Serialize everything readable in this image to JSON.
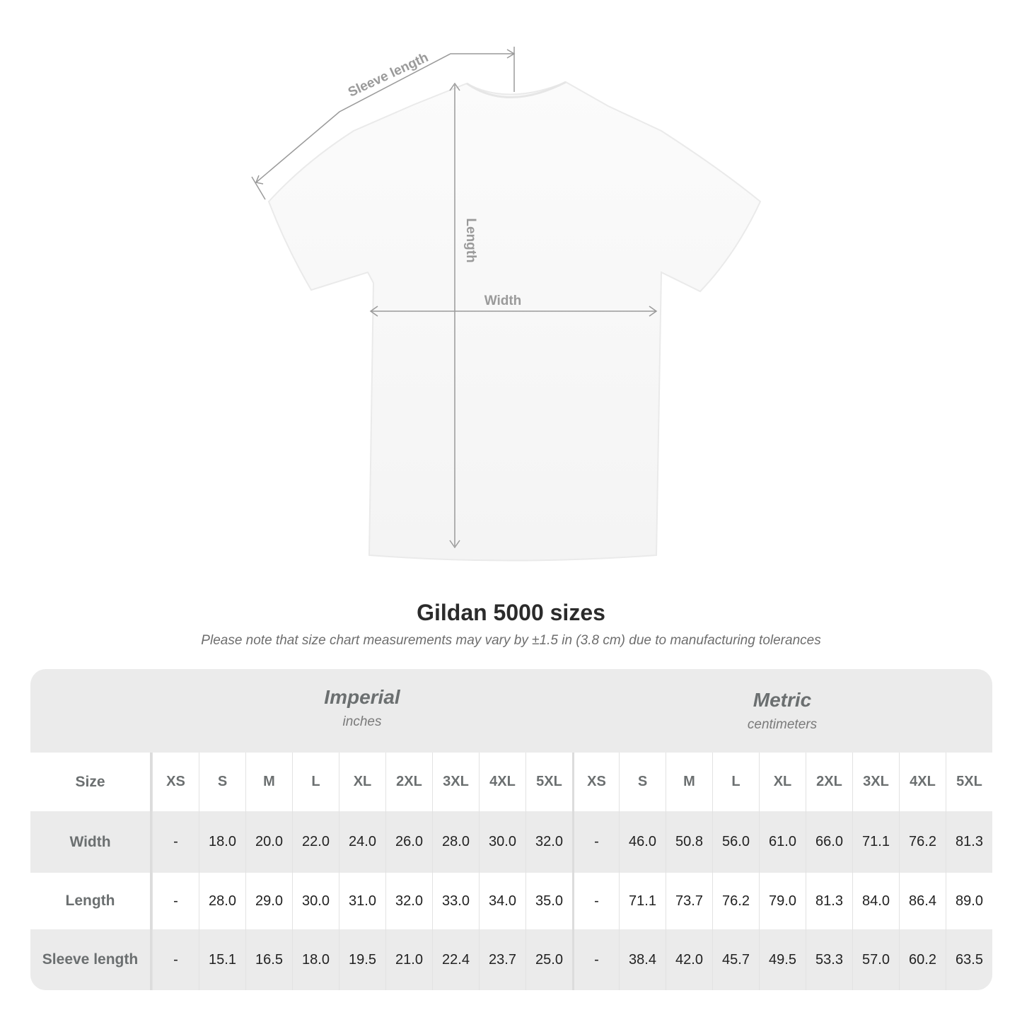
{
  "diagram": {
    "sleeve_label": "Sleeve length",
    "length_label": "Length",
    "width_label": "Width"
  },
  "title": "Gildan 5000 sizes",
  "subtitle": "Please note that size chart measurements may vary by ±1.5 in (3.8 cm) due to manufacturing tolerances",
  "imperial": {
    "name": "Imperial",
    "unit": "inches"
  },
  "metric": {
    "name": "Metric",
    "unit": "centimeters"
  },
  "table": {
    "size_label": "Size",
    "sizes": [
      "XS",
      "S",
      "M",
      "L",
      "XL",
      "2XL",
      "3XL",
      "4XL",
      "5XL"
    ],
    "rows": [
      {
        "label": "Width",
        "imperial": [
          "-",
          "18.0",
          "20.0",
          "22.0",
          "24.0",
          "26.0",
          "28.0",
          "30.0",
          "32.0"
        ],
        "metric": [
          "-",
          "46.0",
          "50.8",
          "56.0",
          "61.0",
          "66.0",
          "71.1",
          "76.2",
          "81.3"
        ]
      },
      {
        "label": "Length",
        "imperial": [
          "-",
          "28.0",
          "29.0",
          "30.0",
          "31.0",
          "32.0",
          "33.0",
          "34.0",
          "35.0"
        ],
        "metric": [
          "-",
          "71.1",
          "73.7",
          "76.2",
          "79.0",
          "81.3",
          "84.0",
          "86.4",
          "89.0"
        ]
      },
      {
        "label": "Sleeve length",
        "imperial": [
          "-",
          "15.1",
          "16.5",
          "18.0",
          "19.5",
          "21.0",
          "22.4",
          "23.7",
          "25.0"
        ],
        "metric": [
          "-",
          "38.4",
          "42.0",
          "45.7",
          "49.5",
          "53.3",
          "57.0",
          "60.2",
          "63.5"
        ]
      }
    ]
  },
  "colors": {
    "header_text": "#6b6f70",
    "band": "#ebebeb",
    "measure_line": "#9a9a9a"
  }
}
